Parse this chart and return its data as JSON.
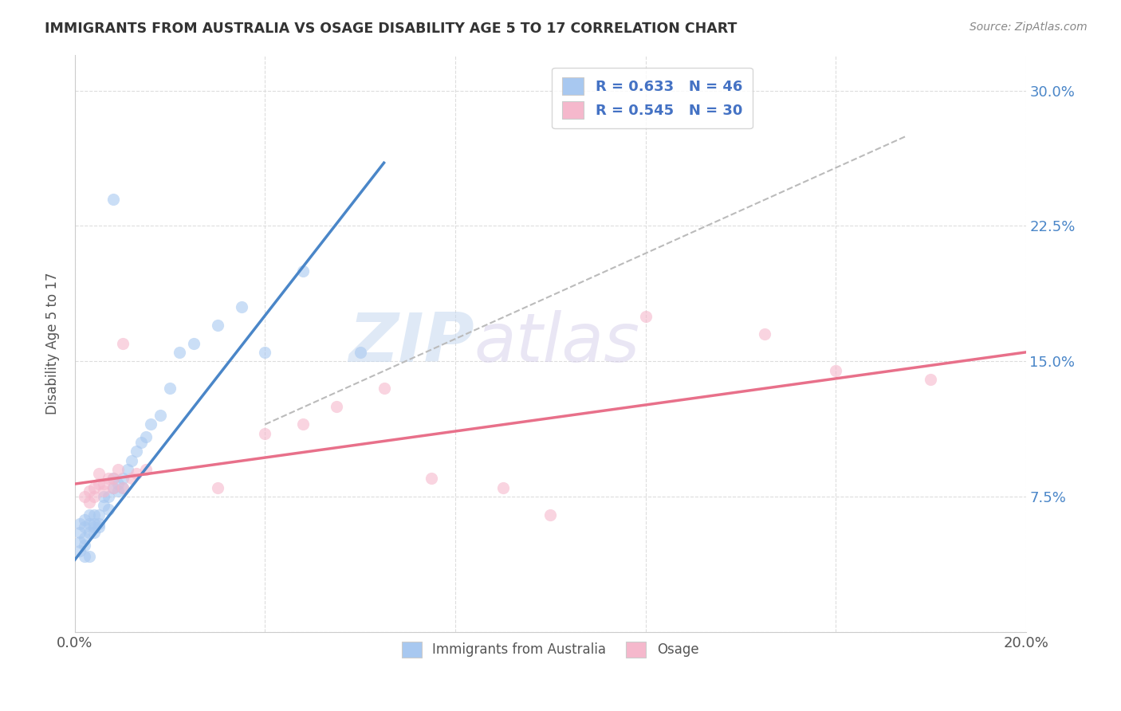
{
  "title": "IMMIGRANTS FROM AUSTRALIA VS OSAGE DISABILITY AGE 5 TO 17 CORRELATION CHART",
  "source": "Source: ZipAtlas.com",
  "ylabel": "Disability Age 5 to 17",
  "xlim": [
    0.0,
    0.2
  ],
  "ylim": [
    0.0,
    0.32
  ],
  "xticks": [
    0.0,
    0.04,
    0.08,
    0.12,
    0.16,
    0.2
  ],
  "xtick_labels": [
    "0.0%",
    "",
    "",
    "",
    "",
    "20.0%"
  ],
  "yticks": [
    0.0,
    0.075,
    0.15,
    0.225,
    0.3
  ],
  "ytick_labels_right": [
    "",
    "7.5%",
    "15.0%",
    "22.5%",
    "30.0%"
  ],
  "blue_color": "#a8c8f0",
  "pink_color": "#f5b8cc",
  "line_blue": "#4a86c8",
  "line_pink": "#e8708a",
  "legend_blue_label": "R = 0.633   N = 46",
  "legend_pink_label": "R = 0.545   N = 30",
  "legend_bottom_blue": "Immigrants from Australia",
  "legend_bottom_pink": "Osage",
  "watermark_zip": "ZIP",
  "watermark_atlas": "atlas",
  "blue_scatter_x": [
    0.001,
    0.001,
    0.001,
    0.001,
    0.002,
    0.002,
    0.002,
    0.002,
    0.002,
    0.003,
    0.003,
    0.003,
    0.003,
    0.004,
    0.004,
    0.004,
    0.004,
    0.005,
    0.005,
    0.005,
    0.006,
    0.006,
    0.007,
    0.007,
    0.008,
    0.008,
    0.009,
    0.009,
    0.01,
    0.01,
    0.011,
    0.012,
    0.013,
    0.014,
    0.015,
    0.016,
    0.018,
    0.02,
    0.022,
    0.025,
    0.03,
    0.035,
    0.04,
    0.048,
    0.06,
    0.008
  ],
  "blue_scatter_y": [
    0.05,
    0.055,
    0.06,
    0.045,
    0.052,
    0.058,
    0.048,
    0.062,
    0.042,
    0.055,
    0.06,
    0.065,
    0.042,
    0.06,
    0.065,
    0.055,
    0.058,
    0.065,
    0.06,
    0.058,
    0.075,
    0.07,
    0.075,
    0.068,
    0.08,
    0.085,
    0.078,
    0.082,
    0.085,
    0.08,
    0.09,
    0.095,
    0.1,
    0.105,
    0.108,
    0.115,
    0.12,
    0.135,
    0.155,
    0.16,
    0.17,
    0.18,
    0.155,
    0.2,
    0.155,
    0.24
  ],
  "pink_scatter_x": [
    0.002,
    0.003,
    0.003,
    0.004,
    0.004,
    0.005,
    0.005,
    0.006,
    0.006,
    0.007,
    0.008,
    0.008,
    0.009,
    0.01,
    0.01,
    0.012,
    0.013,
    0.015,
    0.03,
    0.04,
    0.048,
    0.055,
    0.065,
    0.075,
    0.09,
    0.1,
    0.12,
    0.145,
    0.16,
    0.18
  ],
  "pink_scatter_y": [
    0.075,
    0.072,
    0.078,
    0.08,
    0.075,
    0.082,
    0.088,
    0.078,
    0.082,
    0.085,
    0.08,
    0.085,
    0.09,
    0.08,
    0.16,
    0.085,
    0.088,
    0.09,
    0.08,
    0.11,
    0.115,
    0.125,
    0.135,
    0.085,
    0.08,
    0.065,
    0.175,
    0.165,
    0.145,
    0.14
  ],
  "blue_line_x": [
    0.0,
    0.065
  ],
  "blue_line_y": [
    0.04,
    0.26
  ],
  "pink_line_x": [
    0.0,
    0.2
  ],
  "pink_line_y": [
    0.082,
    0.155
  ],
  "dashed_line_x": [
    0.04,
    0.175
  ],
  "dashed_line_y": [
    0.115,
    0.275
  ]
}
